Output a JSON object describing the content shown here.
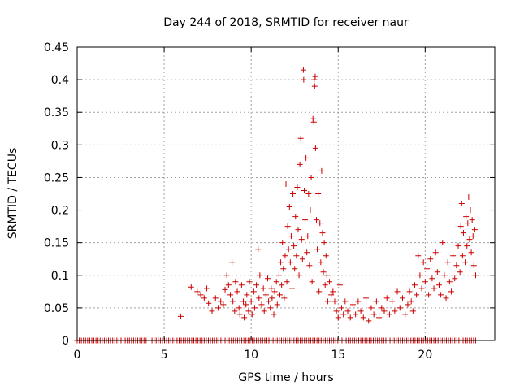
{
  "colors": {
    "series": "#cc0000",
    "grid": "#a0a0a0",
    "axis": "#000000",
    "background": "#ffffff"
  },
  "chart_data": {
    "type": "scatter",
    "title": "Day 244 of 2018, SRMTID for receiver naur",
    "xlabel": "GPS time / hours",
    "ylabel": "SRMTID / TECUs",
    "xlim": [
      0,
      24
    ],
    "ylim": [
      0,
      0.45
    ],
    "xticks": [
      0,
      5,
      10,
      15,
      20
    ],
    "xtick_labels": [
      "0",
      "5",
      "10",
      "15",
      "20"
    ],
    "yticks": [
      0,
      0.05,
      0.1,
      0.15,
      0.2,
      0.25,
      0.3,
      0.35,
      0.4,
      0.45
    ],
    "ytick_labels": [
      "0",
      "0.05",
      "0.1",
      "0.15",
      "0.2",
      "0.25",
      "0.3",
      "0.35",
      "0.4",
      "0.45"
    ],
    "grid": true,
    "marker": "+",
    "series": [
      {
        "name": "SRMTID",
        "zero_segments": [
          [
            0.0,
            4.0
          ],
          [
            4.3,
            23.0
          ]
        ],
        "zero_step": 0.12,
        "points": [
          [
            5.95,
            0.037
          ],
          [
            6.55,
            0.082
          ],
          [
            6.9,
            0.075
          ],
          [
            7.1,
            0.07
          ],
          [
            7.3,
            0.065
          ],
          [
            7.45,
            0.08
          ],
          [
            7.55,
            0.057
          ],
          [
            7.75,
            0.045
          ],
          [
            7.95,
            0.065
          ],
          [
            8.1,
            0.05
          ],
          [
            8.25,
            0.06
          ],
          [
            8.4,
            0.055
          ],
          [
            8.5,
            0.078
          ],
          [
            8.6,
            0.1
          ],
          [
            8.7,
            0.085
          ],
          [
            8.8,
            0.07
          ],
          [
            8.9,
            0.12
          ],
          [
            8.95,
            0.06
          ],
          [
            9.05,
            0.045
          ],
          [
            9.1,
            0.09
          ],
          [
            9.2,
            0.075
          ],
          [
            9.3,
            0.05
          ],
          [
            9.35,
            0.04
          ],
          [
            9.45,
            0.085
          ],
          [
            9.55,
            0.06
          ],
          [
            9.6,
            0.035
          ],
          [
            9.7,
            0.055
          ],
          [
            9.75,
            0.07
          ],
          [
            9.85,
            0.045
          ],
          [
            9.9,
            0.09
          ],
          [
            10.0,
            0.06
          ],
          [
            10.05,
            0.04
          ],
          [
            10.15,
            0.075
          ],
          [
            10.2,
            0.05
          ],
          [
            10.3,
            0.085
          ],
          [
            10.4,
            0.14
          ],
          [
            10.45,
            0.065
          ],
          [
            10.5,
            0.1
          ],
          [
            10.6,
            0.055
          ],
          [
            10.7,
            0.08
          ],
          [
            10.75,
            0.045
          ],
          [
            10.85,
            0.07
          ],
          [
            10.95,
            0.095
          ],
          [
            11.0,
            0.06
          ],
          [
            11.1,
            0.05
          ],
          [
            11.15,
            0.08
          ],
          [
            11.2,
            0.065
          ],
          [
            11.3,
            0.04
          ],
          [
            11.35,
            0.075
          ],
          [
            11.45,
            0.09
          ],
          [
            11.5,
            0.055
          ],
          [
            11.6,
            0.1
          ],
          [
            11.65,
            0.07
          ],
          [
            11.7,
            0.12
          ],
          [
            11.75,
            0.085
          ],
          [
            11.8,
            0.15
          ],
          [
            11.85,
            0.11
          ],
          [
            11.9,
            0.065
          ],
          [
            11.95,
            0.13
          ],
          [
            12.0,
            0.24
          ],
          [
            12.05,
            0.09
          ],
          [
            12.1,
            0.175
          ],
          [
            12.15,
            0.14
          ],
          [
            12.2,
            0.205
          ],
          [
            12.25,
            0.12
          ],
          [
            12.3,
            0.16
          ],
          [
            12.35,
            0.08
          ],
          [
            12.4,
            0.225
          ],
          [
            12.45,
            0.145
          ],
          [
            12.5,
            0.11
          ],
          [
            12.55,
            0.19
          ],
          [
            12.6,
            0.13
          ],
          [
            12.65,
            0.235
          ],
          [
            12.7,
            0.17
          ],
          [
            12.75,
            0.1
          ],
          [
            12.8,
            0.27
          ],
          [
            12.85,
            0.31
          ],
          [
            12.9,
            0.155
          ],
          [
            12.95,
            0.125
          ],
          [
            13.0,
            0.415
          ],
          [
            13.02,
            0.4
          ],
          [
            13.05,
            0.23
          ],
          [
            13.1,
            0.185
          ],
          [
            13.15,
            0.28
          ],
          [
            13.2,
            0.135
          ],
          [
            13.25,
            0.16
          ],
          [
            13.3,
            0.225
          ],
          [
            13.35,
            0.115
          ],
          [
            13.4,
            0.2
          ],
          [
            13.45,
            0.25
          ],
          [
            13.5,
            0.09
          ],
          [
            13.55,
            0.34
          ],
          [
            13.6,
            0.335
          ],
          [
            13.62,
            0.4
          ],
          [
            13.65,
            0.39
          ],
          [
            13.68,
            0.405
          ],
          [
            13.7,
            0.295
          ],
          [
            13.75,
            0.185
          ],
          [
            13.8,
            0.14
          ],
          [
            13.85,
            0.225
          ],
          [
            13.9,
            0.075
          ],
          [
            13.95,
            0.18
          ],
          [
            14.0,
            0.12
          ],
          [
            14.05,
            0.26
          ],
          [
            14.1,
            0.165
          ],
          [
            14.15,
            0.105
          ],
          [
            14.2,
            0.15
          ],
          [
            14.25,
            0.085
          ],
          [
            14.3,
            0.13
          ],
          [
            14.35,
            0.1
          ],
          [
            14.4,
            0.06
          ],
          [
            14.5,
            0.09
          ],
          [
            14.6,
            0.07
          ],
          [
            14.7,
            0.075
          ],
          [
            14.8,
            0.06
          ],
          [
            14.9,
            0.045
          ],
          [
            15.0,
            0.035
          ],
          [
            15.1,
            0.085
          ],
          [
            15.2,
            0.05
          ],
          [
            15.3,
            0.04
          ],
          [
            15.4,
            0.06
          ],
          [
            15.55,
            0.045
          ],
          [
            15.7,
            0.035
          ],
          [
            15.85,
            0.055
          ],
          [
            16.0,
            0.04
          ],
          [
            16.15,
            0.06
          ],
          [
            16.3,
            0.045
          ],
          [
            16.45,
            0.035
          ],
          [
            16.6,
            0.065
          ],
          [
            16.75,
            0.03
          ],
          [
            16.9,
            0.05
          ],
          [
            17.05,
            0.04
          ],
          [
            17.2,
            0.06
          ],
          [
            17.35,
            0.035
          ],
          [
            17.5,
            0.05
          ],
          [
            17.65,
            0.045
          ],
          [
            17.8,
            0.065
          ],
          [
            17.95,
            0.04
          ],
          [
            18.1,
            0.06
          ],
          [
            18.25,
            0.045
          ],
          [
            18.4,
            0.075
          ],
          [
            18.55,
            0.05
          ],
          [
            18.7,
            0.065
          ],
          [
            18.85,
            0.04
          ],
          [
            19.0,
            0.055
          ],
          [
            19.1,
            0.075
          ],
          [
            19.2,
            0.06
          ],
          [
            19.3,
            0.045
          ],
          [
            19.4,
            0.085
          ],
          [
            19.5,
            0.07
          ],
          [
            19.6,
            0.13
          ],
          [
            19.7,
            0.1
          ],
          [
            19.8,
            0.08
          ],
          [
            19.9,
            0.12
          ],
          [
            20.0,
            0.09
          ],
          [
            20.1,
            0.11
          ],
          [
            20.2,
            0.07
          ],
          [
            20.3,
            0.125
          ],
          [
            20.4,
            0.095
          ],
          [
            20.5,
            0.08
          ],
          [
            20.6,
            0.135
          ],
          [
            20.7,
            0.105
          ],
          [
            20.8,
            0.085
          ],
          [
            20.9,
            0.07
          ],
          [
            21.0,
            0.15
          ],
          [
            21.1,
            0.1
          ],
          [
            21.2,
            0.065
          ],
          [
            21.3,
            0.12
          ],
          [
            21.4,
            0.09
          ],
          [
            21.5,
            0.075
          ],
          [
            21.6,
            0.13
          ],
          [
            21.7,
            0.095
          ],
          [
            21.8,
            0.115
          ],
          [
            21.9,
            0.145
          ],
          [
            22.0,
            0.105
          ],
          [
            22.05,
            0.175
          ],
          [
            22.1,
            0.21
          ],
          [
            22.15,
            0.13
          ],
          [
            22.2,
            0.165
          ],
          [
            22.3,
            0.12
          ],
          [
            22.35,
            0.19
          ],
          [
            22.4,
            0.145
          ],
          [
            22.45,
            0.18
          ],
          [
            22.5,
            0.22
          ],
          [
            22.55,
            0.155
          ],
          [
            22.6,
            0.2
          ],
          [
            22.65,
            0.135
          ],
          [
            22.7,
            0.185
          ],
          [
            22.75,
            0.16
          ],
          [
            22.8,
            0.115
          ],
          [
            22.85,
            0.17
          ],
          [
            22.9,
            0.1
          ]
        ]
      }
    ]
  }
}
